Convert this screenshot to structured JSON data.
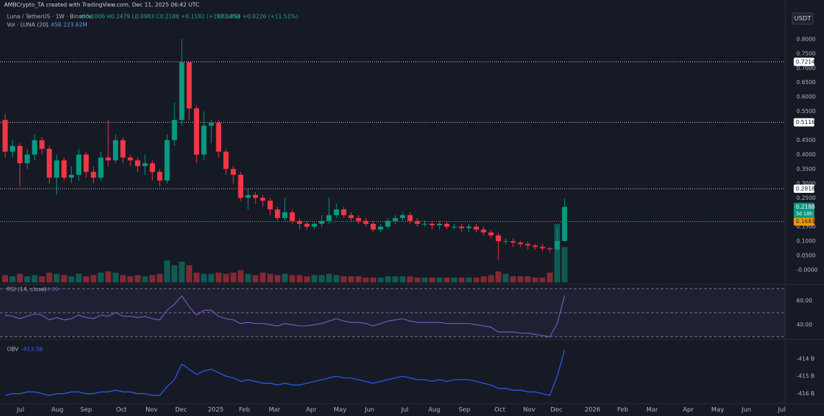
{
  "header": {
    "watermark": "AMBCrypto_TA created with TradingView.com, Dec 11, 2025 06:42 UTC",
    "symbol": "Luna / TetherUS · 1W · Binance",
    "ohlc": "O0.1006 H0.2479 L0.0983 C0.2188 +0.1182 (+117.50%)",
    "vol": "Vol1.45B +0.0226 (+11.51%)",
    "vol_ma": "Vol · LUNA (20)",
    "vol_ma_values": "1.45B 223.62M",
    "currency": "USDT"
  },
  "chart_data": [
    {
      "type": "candlestick",
      "up_color": "#089981",
      "down_color": "#f23645",
      "open": [
        0.52,
        0.41,
        0.43,
        0.37,
        0.4,
        0.45,
        0.42,
        0.32,
        0.38,
        0.32,
        0.33,
        0.4,
        0.34,
        0.32,
        0.39,
        0.38,
        0.45,
        0.39,
        0.38,
        0.36,
        0.37,
        0.34,
        0.31,
        0.45,
        0.52,
        0.72,
        0.56,
        0.4,
        0.5,
        0.51,
        0.41,
        0.35,
        0.33,
        0.25,
        0.26,
        0.25,
        0.24,
        0.21,
        0.18,
        0.2,
        0.17,
        0.16,
        0.15,
        0.16,
        0.17,
        0.19,
        0.21,
        0.19,
        0.18,
        0.17,
        0.16,
        0.14,
        0.15,
        0.17,
        0.18,
        0.19,
        0.17,
        0.16,
        0.16,
        0.155,
        0.16,
        0.15,
        0.15,
        0.145,
        0.15,
        0.14,
        0.13,
        0.12,
        0.1,
        0.1,
        0.095,
        0.09,
        0.085,
        0.08,
        0.075,
        0.072,
        0.1006
      ],
      "high": [
        0.54,
        0.45,
        0.44,
        0.42,
        0.47,
        0.46,
        0.43,
        0.4,
        0.39,
        0.36,
        0.42,
        0.41,
        0.36,
        0.41,
        0.52,
        0.47,
        0.46,
        0.4,
        0.39,
        0.4,
        0.38,
        0.35,
        0.47,
        0.58,
        0.8,
        0.72,
        0.57,
        0.55,
        0.52,
        0.52,
        0.42,
        0.36,
        0.34,
        0.28,
        0.27,
        0.26,
        0.25,
        0.22,
        0.25,
        0.21,
        0.18,
        0.17,
        0.17,
        0.19,
        0.25,
        0.23,
        0.22,
        0.2,
        0.19,
        0.18,
        0.17,
        0.16,
        0.18,
        0.19,
        0.2,
        0.2,
        0.18,
        0.17,
        0.17,
        0.17,
        0.17,
        0.16,
        0.16,
        0.16,
        0.16,
        0.15,
        0.14,
        0.13,
        0.11,
        0.11,
        0.1,
        0.1,
        0.09,
        0.09,
        0.08,
        0.145,
        0.2479
      ],
      "low": [
        0.39,
        0.39,
        0.29,
        0.35,
        0.38,
        0.4,
        0.3,
        0.26,
        0.31,
        0.3,
        0.31,
        0.32,
        0.3,
        0.31,
        0.36,
        0.37,
        0.37,
        0.36,
        0.34,
        0.33,
        0.31,
        0.29,
        0.3,
        0.43,
        0.5,
        0.52,
        0.37,
        0.38,
        0.44,
        0.39,
        0.33,
        0.3,
        0.24,
        0.21,
        0.23,
        0.22,
        0.19,
        0.17,
        0.17,
        0.16,
        0.14,
        0.14,
        0.14,
        0.15,
        0.16,
        0.18,
        0.18,
        0.17,
        0.16,
        0.15,
        0.13,
        0.13,
        0.14,
        0.16,
        0.17,
        0.16,
        0.15,
        0.15,
        0.14,
        0.14,
        0.14,
        0.14,
        0.13,
        0.13,
        0.13,
        0.12,
        0.11,
        0.035,
        0.09,
        0.08,
        0.08,
        0.07,
        0.07,
        0.065,
        0.06,
        0.065,
        0.0983
      ],
      "close": [
        0.41,
        0.43,
        0.37,
        0.4,
        0.45,
        0.42,
        0.32,
        0.38,
        0.32,
        0.33,
        0.4,
        0.34,
        0.32,
        0.39,
        0.38,
        0.45,
        0.39,
        0.38,
        0.36,
        0.37,
        0.34,
        0.31,
        0.45,
        0.52,
        0.72,
        0.56,
        0.4,
        0.5,
        0.51,
        0.41,
        0.35,
        0.33,
        0.25,
        0.26,
        0.25,
        0.24,
        0.21,
        0.18,
        0.2,
        0.17,
        0.16,
        0.15,
        0.16,
        0.17,
        0.19,
        0.21,
        0.19,
        0.18,
        0.17,
        0.16,
        0.14,
        0.15,
        0.17,
        0.18,
        0.19,
        0.17,
        0.16,
        0.16,
        0.155,
        0.16,
        0.15,
        0.15,
        0.145,
        0.15,
        0.14,
        0.13,
        0.12,
        0.1,
        0.1,
        0.095,
        0.09,
        0.085,
        0.08,
        0.075,
        0.072,
        0.1006,
        0.2188
      ],
      "volume": [
        0.3,
        0.25,
        0.35,
        0.25,
        0.3,
        0.25,
        0.4,
        0.35,
        0.3,
        0.25,
        0.35,
        0.25,
        0.3,
        0.4,
        0.45,
        0.4,
        0.3,
        0.25,
        0.3,
        0.25,
        0.3,
        0.35,
        0.9,
        0.7,
        0.85,
        0.7,
        0.4,
        0.35,
        0.35,
        0.4,
        0.35,
        0.4,
        0.5,
        0.35,
        0.3,
        0.4,
        0.35,
        0.3,
        0.35,
        0.3,
        0.3,
        0.25,
        0.3,
        0.3,
        0.35,
        0.3,
        0.25,
        0.25,
        0.25,
        0.2,
        0.2,
        0.2,
        0.25,
        0.25,
        0.25,
        0.25,
        0.2,
        0.2,
        0.2,
        0.2,
        0.2,
        0.2,
        0.2,
        0.2,
        0.2,
        0.25,
        0.3,
        0.45,
        0.35,
        0.25,
        0.25,
        0.25,
        0.2,
        0.2,
        0.4,
        2.4,
        1.45
      ],
      "xlim": [
        -0.7,
        106
      ],
      "xticks": [
        {
          "value": 2.1,
          "label": "Jul"
        },
        {
          "value": 7.1,
          "label": "Aug"
        },
        {
          "value": 11.0,
          "label": "Sep"
        },
        {
          "value": 15.8,
          "label": "Oct"
        },
        {
          "value": 19.9,
          "label": "Nov"
        },
        {
          "value": 23.9,
          "label": "Dec"
        },
        {
          "value": 28.6,
          "label": "2025"
        },
        {
          "value": 32.5,
          "label": "Feb"
        },
        {
          "value": 36.6,
          "label": "Mar"
        },
        {
          "value": 41.6,
          "label": "Apr"
        },
        {
          "value": 45.5,
          "label": "May"
        },
        {
          "value": 49.5,
          "label": "Jun"
        },
        {
          "value": 54.3,
          "label": "Jul"
        },
        {
          "value": 58.3,
          "label": "Aug"
        },
        {
          "value": 62.4,
          "label": "Sep"
        },
        {
          "value": 67.2,
          "label": "Oct"
        },
        {
          "value": 71.2,
          "label": "Nov"
        },
        {
          "value": 74.9,
          "label": "Dec"
        },
        {
          "value": 79.8,
          "label": "2026"
        },
        {
          "value": 83.9,
          "label": "Feb"
        },
        {
          "value": 87.9,
          "label": "Mar"
        },
        {
          "value": 92.8,
          "label": "Apr"
        },
        {
          "value": 96.8,
          "label": "May"
        },
        {
          "value": 100.7,
          "label": "Jun"
        },
        {
          "value": 105.5,
          "label": "Jul"
        }
      ],
      "ylim": [
        -0.043,
        0.888
      ],
      "yticks": [
        {
          "value": 0.8,
          "label": "0.8000"
        },
        {
          "value": 0.75,
          "label": "0.7500"
        },
        {
          "value": 0.7,
          "label": "0.7000"
        },
        {
          "value": 0.65,
          "label": "0.6500"
        },
        {
          "value": 0.6,
          "label": "0.6000"
        },
        {
          "value": 0.55,
          "label": "0.5500"
        },
        {
          "value": 0.45,
          "label": "0.4500"
        },
        {
          "value": 0.4,
          "label": "0.4000"
        },
        {
          "value": 0.35,
          "label": "0.3500"
        },
        {
          "value": 0.3,
          "label": "0.3000"
        },
        {
          "value": 0.25,
          "label": "0.2500"
        },
        {
          "value": 0.15,
          "label": "0.1500"
        },
        {
          "value": 0.1,
          "label": "0.1000"
        },
        {
          "value": 0.05,
          "label": "0.0500"
        },
        {
          "value": 0,
          "label": "-0.0000"
        }
      ],
      "price_lines": [
        {
          "value": 0.7214,
          "label": "0.7214",
          "color": "#d1d4dc"
        },
        {
          "value": 0.5116,
          "label": "0.5116",
          "color": "#d1d4dc"
        },
        {
          "value": 0.2818,
          "label": "0.2818",
          "color": "#d1d4dc"
        },
        {
          "value": 0.1681,
          "label": "0.1681",
          "color": "#ff9800"
        }
      ],
      "countdown": "3d 18h"
    },
    {
      "type": "line",
      "title": "RSI (14, close)",
      "color": "#7e57c2",
      "values": [
        48,
        47,
        45,
        47,
        49,
        48,
        44,
        46,
        44,
        45,
        48,
        46,
        45,
        48,
        47,
        50,
        47,
        47,
        46,
        47,
        45,
        44,
        52,
        57,
        64,
        55,
        48,
        52,
        52,
        47,
        45,
        44,
        41,
        42,
        41,
        41,
        40,
        39,
        41,
        40,
        39,
        39,
        40,
        41,
        43,
        45,
        43,
        42,
        42,
        41,
        39,
        41,
        43,
        44,
        45,
        43,
        42,
        42,
        42,
        42,
        41,
        41,
        41,
        41,
        40,
        39,
        38,
        34,
        34,
        34,
        33,
        33,
        32,
        31,
        30,
        41,
        64.09
      ],
      "ylim": [
        29.4,
        70.6
      ],
      "yticks": [
        {
          "value": 60,
          "label": "60.00"
        },
        {
          "value": 40,
          "label": "40.00"
        }
      ],
      "levels": [
        30,
        50,
        70
      ]
    },
    {
      "type": "line",
      "title": "OBV",
      "color": "#2962ff",
      "last_label": "-413.5B",
      "values": [
        -416.1,
        -416.0,
        -416.0,
        -415.9,
        -415.9,
        -416.0,
        -416.1,
        -416.0,
        -416.0,
        -415.9,
        -415.9,
        -416.0,
        -416.0,
        -415.9,
        -415.9,
        -415.8,
        -415.9,
        -415.9,
        -416.0,
        -416.0,
        -416.1,
        -416.1,
        -415.6,
        -415.2,
        -414.3,
        -414.6,
        -414.9,
        -414.7,
        -414.6,
        -414.8,
        -415.0,
        -415.1,
        -415.3,
        -415.2,
        -415.3,
        -415.4,
        -415.4,
        -415.5,
        -415.4,
        -415.5,
        -415.5,
        -415.4,
        -415.3,
        -415.2,
        -415.1,
        -415.0,
        -415.1,
        -415.1,
        -415.2,
        -415.3,
        -415.4,
        -415.3,
        -415.2,
        -415.1,
        -415.0,
        -415.1,
        -415.2,
        -415.2,
        -415.3,
        -415.2,
        -415.3,
        -415.2,
        -415.2,
        -415.2,
        -415.3,
        -415.4,
        -415.5,
        -415.7,
        -415.7,
        -415.8,
        -415.8,
        -415.9,
        -415.9,
        -416.0,
        -416.1,
        -415.0,
        -413.5
      ],
      "ylim": [
        -416.53,
        -412.98
      ],
      "yticks": [
        {
          "value": -414,
          "label": "-414 B"
        },
        {
          "value": -415,
          "label": "-415 B"
        },
        {
          "value": -416,
          "label": "-416 B"
        }
      ]
    }
  ]
}
